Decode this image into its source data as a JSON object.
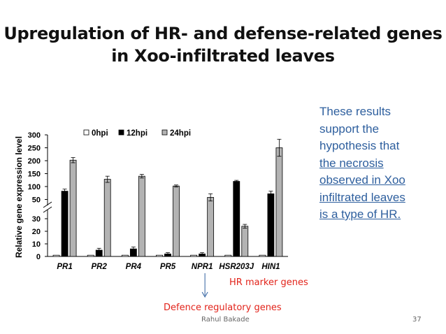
{
  "slide": {
    "title_line1": "Upregulation of HR- and defense-related genes",
    "title_line2": "in Xoo-infiltrated leaves",
    "note_line1": "These results",
    "note_line2": "support the",
    "note_line3": "hypothesis that",
    "note_line4": "the necrosis",
    "note_line5": "observed in Xoo",
    "note_line6": "infiltrated leaves",
    "note_line7": "is a type of HR.",
    "hr_marker_label": "HR marker genes",
    "defence_label": "Defence regulatory genes",
    "author": "Rahul Bakade",
    "page_number": "37"
  },
  "chart_data": {
    "type": "bar",
    "ylabel": "Relative gene expression level",
    "categories": [
      "PR1",
      "PR2",
      "PR4",
      "PR5",
      "NPR1",
      "HSR203J",
      "HIN1"
    ],
    "series": [
      {
        "name": "0hpi",
        "color": "#ffffff",
        "values": [
          1,
          1,
          1,
          1,
          1,
          1,
          1
        ],
        "errors": [
          0.3,
          0.3,
          0.3,
          0.3,
          0.3,
          0.3,
          0.3
        ]
      },
      {
        "name": "12hpi",
        "color": "#000000",
        "values": [
          82,
          5,
          6,
          2,
          2,
          120,
          72
        ],
        "errors": [
          8,
          1.5,
          1.5,
          1,
          1,
          4,
          10
        ]
      },
      {
        "name": "24hpi",
        "color": "#b3b3b3",
        "values": [
          202,
          128,
          140,
          102,
          58,
          24,
          250
        ],
        "errors": [
          10,
          12,
          7,
          4,
          14,
          1.5,
          33
        ]
      }
    ],
    "axis_break": true,
    "lower_ticks": [
      0,
      10,
      20,
      30
    ],
    "upper_ticks": [
      50,
      100,
      150,
      200,
      250,
      300
    ],
    "lower_range": [
      0,
      35
    ],
    "upper_range": [
      35,
      300
    ],
    "legend_position": "top",
    "grid": false
  }
}
